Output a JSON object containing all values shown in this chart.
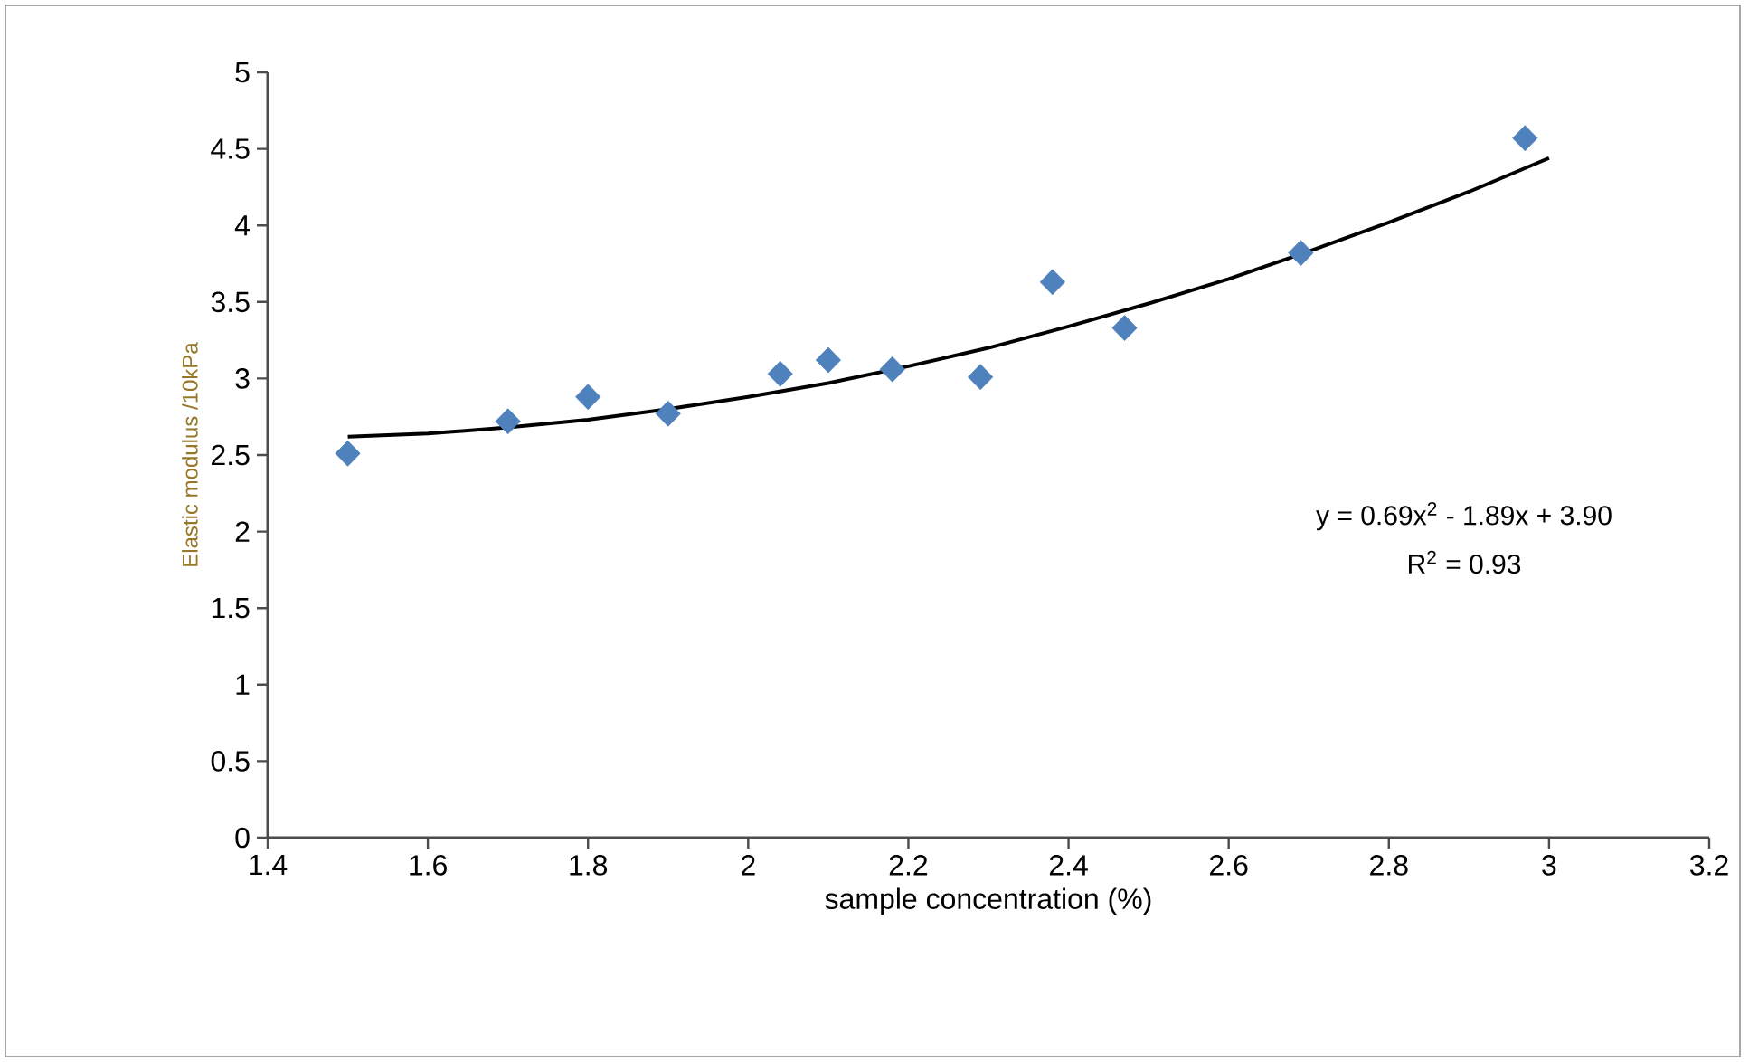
{
  "chart_data": {
    "type": "scatter",
    "xlabel": "sample concentration (%)",
    "ylabel": "Elastic modulus /10kPa",
    "xlim": [
      1.4,
      3.2
    ],
    "xticks": [
      1.4,
      1.6,
      1.8,
      2,
      2.2,
      2.4,
      2.6,
      2.8,
      3,
      3.2
    ],
    "ylim": [
      0,
      5
    ],
    "yticks": [
      0,
      0.5,
      1,
      1.5,
      2,
      2.5,
      3,
      3.5,
      4,
      4.5,
      5
    ],
    "marker": "diamond",
    "grid": false,
    "series": [
      {
        "color": "#4f81bd",
        "x": [
          1.5,
          1.7,
          1.8,
          1.9,
          2.04,
          2.1,
          2.18,
          2.29,
          2.38,
          2.47,
          2.69,
          2.97
        ],
        "values": [
          2.51,
          2.72,
          2.88,
          2.77,
          3.03,
          3.12,
          3.06,
          3.01,
          3.63,
          3.33,
          3.82,
          4.57
        ]
      },
      {
        "type": "line",
        "color": "#000000",
        "marker": "none",
        "line_style": "solid",
        "x": [
          1.5,
          1.6,
          1.7,
          1.8,
          1.9,
          2.0,
          2.1,
          2.2,
          2.3,
          2.4,
          2.5,
          2.6,
          2.7,
          2.8,
          2.9,
          3.0
        ],
        "values": [
          2.62,
          2.64,
          2.68,
          2.73,
          2.8,
          2.88,
          2.97,
          3.08,
          3.2,
          3.34,
          3.49,
          3.65,
          3.83,
          4.02,
          4.22,
          4.44
        ]
      }
    ],
    "annotations": [
      "y = 0.69x$^{2}$ - 1.89x + 3.90",
      "R$^{2}$ = 0.93"
    ]
  }
}
